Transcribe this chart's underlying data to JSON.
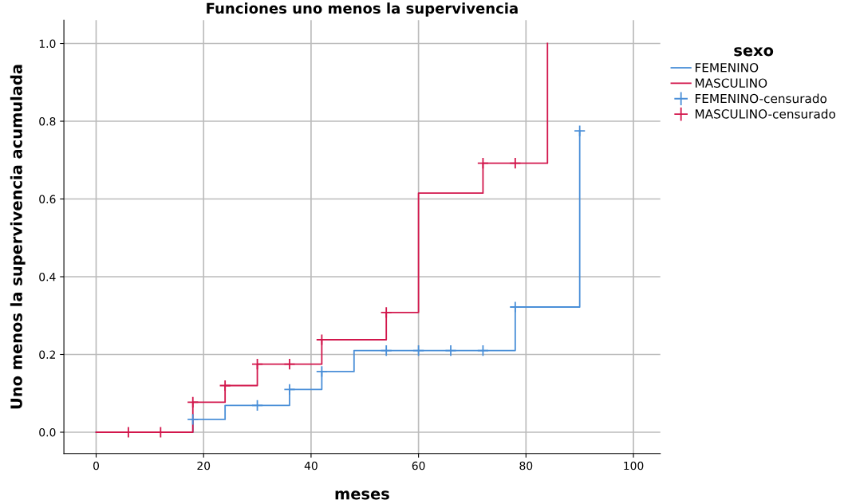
{
  "chart_data": {
    "type": "step",
    "title": "Funciones uno menos la supervivencia",
    "xlabel": "meses",
    "ylabel": "Uno menos la supervivencia acumulada",
    "legend_title": "sexo",
    "legend": "right",
    "grid": true,
    "xlim": [
      -6,
      105
    ],
    "ylim": [
      -0.055,
      1.06
    ],
    "xticks": [
      0,
      20,
      40,
      60,
      80,
      100
    ],
    "yticks": [
      {
        "value": 0,
        "label": "0.0"
      },
      {
        "value": 0.2,
        "label": "0.2"
      },
      {
        "value": 0.4,
        "label": "0.4"
      },
      {
        "value": 0.6,
        "label": "0.6"
      },
      {
        "value": 0.8,
        "label": "0.8"
      },
      {
        "value": 1.0,
        "label": "1.0"
      }
    ],
    "series": [
      {
        "name": "FEMENINO",
        "color": "#4a8fd8",
        "x": [
          0,
          18,
          24,
          36,
          42,
          48,
          78,
          90
        ],
        "values": [
          0,
          0.033,
          0.069,
          0.11,
          0.156,
          0.21,
          0.322,
          0.775
        ]
      },
      {
        "name": "MASCULINO",
        "color": "#d2174c",
        "x": [
          0,
          18,
          24,
          30,
          42,
          54,
          60,
          72,
          84
        ],
        "values": [
          0,
          0.077,
          0.12,
          0.175,
          0.238,
          0.308,
          0.615,
          0.692,
          1.0
        ]
      },
      {
        "name": "FEMENINO-censurado",
        "type": "scatter",
        "marker": "cross",
        "color": "#4a8fd8",
        "x": [
          18,
          30,
          36,
          42,
          54,
          60,
          66,
          72,
          78,
          90
        ],
        "values": [
          0.033,
          0.069,
          0.11,
          0.156,
          0.21,
          0.21,
          0.21,
          0.21,
          0.322,
          0.775
        ]
      },
      {
        "name": "MASCULINO-censurado",
        "type": "scatter",
        "marker": "cross",
        "color": "#d2174c",
        "x": [
          6,
          12,
          18,
          24,
          30,
          36,
          42,
          54,
          72,
          78
        ],
        "values": [
          0,
          0,
          0.077,
          0.12,
          0.175,
          0.175,
          0.238,
          0.308,
          0.692,
          0.692
        ]
      }
    ]
  }
}
